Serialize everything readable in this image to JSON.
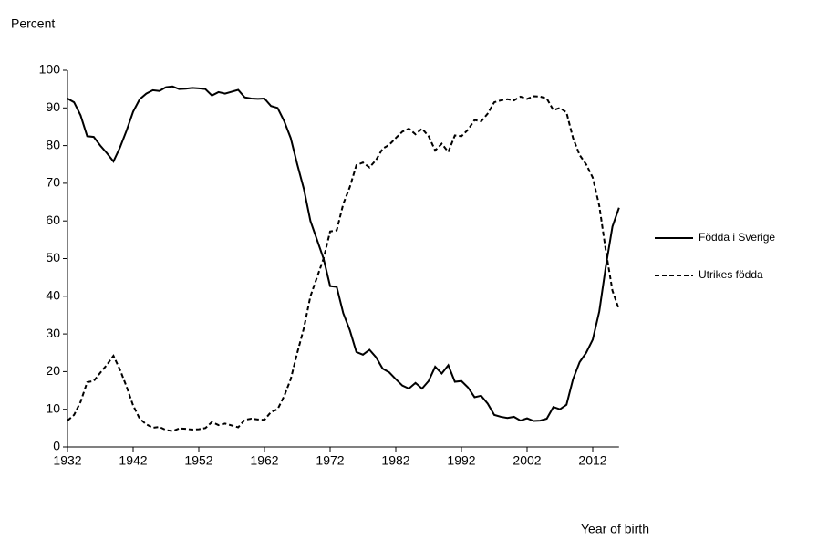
{
  "chart_data": {
    "type": "line",
    "y_label": "Percent",
    "x_label": "Year of birth",
    "x": [
      1932,
      1933,
      1934,
      1935,
      1936,
      1937,
      1938,
      1939,
      1940,
      1941,
      1942,
      1943,
      1944,
      1945,
      1946,
      1947,
      1948,
      1949,
      1950,
      1951,
      1952,
      1953,
      1954,
      1955,
      1956,
      1957,
      1958,
      1959,
      1960,
      1961,
      1962,
      1963,
      1964,
      1965,
      1966,
      1967,
      1968,
      1969,
      1970,
      1971,
      1972,
      1973,
      1974,
      1975,
      1976,
      1977,
      1978,
      1979,
      1980,
      1981,
      1982,
      1983,
      1984,
      1985,
      1986,
      1987,
      1988,
      1989,
      1990,
      1991,
      1992,
      1993,
      1994,
      1995,
      1996,
      1997,
      1998,
      1999,
      2000,
      2001,
      2002,
      2003,
      2004,
      2005,
      2006,
      2007,
      2008,
      2009,
      2010,
      2011,
      2012,
      2013,
      2014,
      2015,
      2016
    ],
    "series": [
      {
        "name": "Födda i Sverige",
        "color": "#000000",
        "line_style": "solid",
        "values": [
          92.5,
          91.5,
          88,
          82.5,
          82.3,
          80,
          78,
          75.8,
          79.5,
          84,
          89,
          92.3,
          93.8,
          94.7,
          94.5,
          95.5,
          95.7,
          95,
          95.1,
          95.3,
          95.2,
          95,
          93.3,
          94.2,
          93.8,
          94.3,
          94.8,
          92.8,
          92.5,
          92.4,
          92.5,
          90.5,
          90,
          86.5,
          82,
          75,
          68.5,
          60,
          55,
          50,
          42.7,
          42.5,
          35.5,
          31,
          25.2,
          24.5,
          25.8,
          23.8,
          20.8,
          19.8,
          18,
          16.3,
          15.5,
          17,
          15.5,
          17.5,
          21.3,
          19.5,
          21.7,
          17.3,
          17.5,
          15.8,
          13.2,
          13.6,
          11.5,
          8.5,
          8,
          7.7,
          8,
          7,
          7.6,
          6.9,
          7,
          7.5,
          10.6,
          10,
          11.2,
          18,
          22.5,
          25,
          28.5,
          36,
          48,
          58.5,
          63.5
        ]
      },
      {
        "name": "Utrikes födda",
        "color": "#000000",
        "line_style": "dashed",
        "values": [
          7,
          8.5,
          12,
          17.2,
          17.5,
          19.7,
          21.8,
          24.2,
          20.5,
          16,
          11,
          7.5,
          6,
          5.1,
          5.3,
          4.5,
          4.2,
          4.9,
          4.8,
          4.6,
          4.7,
          5,
          6.6,
          5.8,
          6.2,
          5.7,
          5.2,
          7.2,
          7.5,
          7.3,
          7.2,
          9.3,
          10,
          13.5,
          18,
          25,
          31.5,
          40,
          45,
          50,
          57.2,
          57.5,
          64.5,
          69,
          74.8,
          75.5,
          74.2,
          76.2,
          79.2,
          80.2,
          82,
          83.7,
          84.5,
          83,
          84.5,
          82.5,
          78.7,
          80.5,
          78.3,
          82.7,
          82.5,
          84.2,
          86.8,
          86.4,
          88.5,
          91.5,
          92,
          92.3,
          92,
          93,
          92.4,
          93.1,
          93,
          92.5,
          89.4,
          90,
          88.8,
          82,
          77.5,
          75,
          71.5,
          64,
          52,
          41.5,
          36.5
        ]
      }
    ],
    "xlim": [
      1932,
      2016
    ],
    "xticks": [
      1932,
      1942,
      1952,
      1962,
      1972,
      1982,
      1992,
      2002,
      2012
    ],
    "ylim": [
      0,
      100
    ],
    "yticks": [
      0,
      10,
      20,
      30,
      40,
      50,
      60,
      70,
      80,
      90,
      100
    ],
    "grid": false,
    "legend": "right"
  }
}
